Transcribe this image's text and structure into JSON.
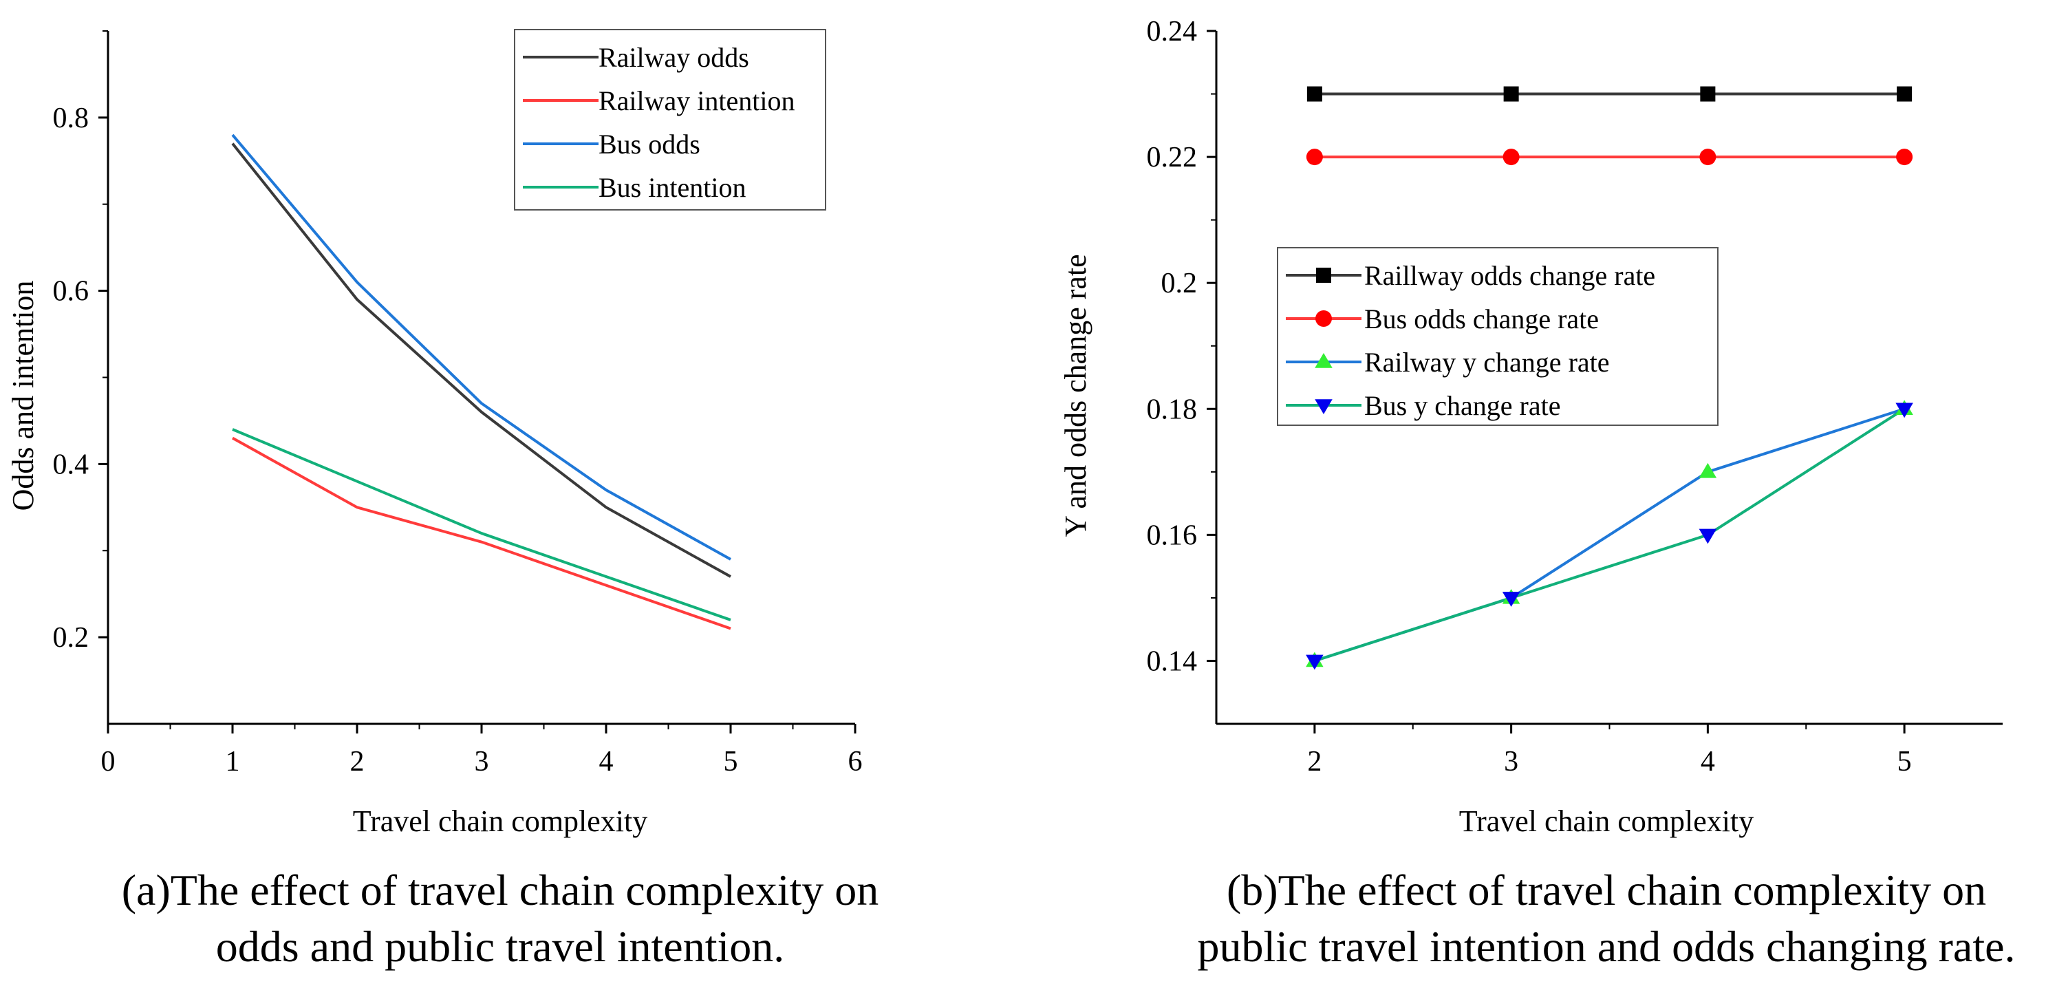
{
  "chart_data": [
    {
      "type": "line",
      "xlabel": "Travel chain complexity",
      "ylabel": "Odds and intention",
      "caption_lines": [
        "(a)The effect of travel chain complexity on",
        "odds and public travel intention."
      ],
      "xlim": [
        0,
        6
      ],
      "ylim": [
        0.1,
        0.9
      ],
      "xticks": [
        0,
        1,
        2,
        3,
        4,
        5,
        6
      ],
      "yticks": [
        0.2,
        0.4,
        0.6,
        0.8
      ],
      "xtick_labels": [
        "0",
        "1",
        "2",
        "3",
        "4",
        "5",
        "6"
      ],
      "ytick_labels": [
        "0.2",
        "0.4",
        "0.6",
        "0.8"
      ],
      "legend_position": "top-right",
      "x": [
        1,
        2,
        3,
        4,
        5
      ],
      "series": [
        {
          "name": "Railway odds",
          "color": "#3a3a3a",
          "marker": "none",
          "values": [
            0.77,
            0.59,
            0.46,
            0.35,
            0.27
          ]
        },
        {
          "name": "Railway intention",
          "color": "#ff3b3b",
          "marker": "none",
          "values": [
            0.43,
            0.35,
            0.31,
            0.26,
            0.21
          ]
        },
        {
          "name": "Bus odds",
          "color": "#1f78d8",
          "marker": "none",
          "values": [
            0.78,
            0.61,
            0.47,
            0.37,
            0.29
          ]
        },
        {
          "name": "Bus intention",
          "color": "#12b07a",
          "marker": "none",
          "values": [
            0.44,
            0.38,
            0.32,
            0.27,
            0.22
          ]
        }
      ]
    },
    {
      "type": "line",
      "xlabel": "Travel chain complexity",
      "ylabel": "Y and odds change rate",
      "caption_lines": [
        "(b)The effect of travel chain complexity on",
        "public travel intention and odds changing rate."
      ],
      "xlim": [
        1.5,
        5.5
      ],
      "ylim": [
        0.13,
        0.24
      ],
      "xticks": [
        2,
        3,
        4,
        5
      ],
      "yticks": [
        0.14,
        0.16,
        0.18,
        0.2,
        0.22,
        0.24
      ],
      "xtick_labels": [
        "2",
        "3",
        "4",
        "5"
      ],
      "ytick_labels": [
        "0.14",
        "0.16",
        "0.18",
        "0.2",
        "0.22",
        "0.24"
      ],
      "legend_position": "center-left",
      "x": [
        2,
        3,
        4,
        5
      ],
      "series": [
        {
          "name": "Raillway odds change rate",
          "color": "#000000",
          "line_color": "#3a3a3a",
          "marker": "square",
          "values": [
            0.23,
            0.23,
            0.23,
            0.23
          ]
        },
        {
          "name": "Bus odds change rate",
          "color": "#ff0000",
          "line_color": "#ff3b3b",
          "marker": "circle",
          "values": [
            0.22,
            0.22,
            0.22,
            0.22
          ]
        },
        {
          "name": "Railway y change rate",
          "color": "#33ee33",
          "line_color": "#1f78d8",
          "marker": "triangle-up",
          "values": [
            0.14,
            0.15,
            0.17,
            0.18
          ]
        },
        {
          "name": "Bus y change rate",
          "color": "#0000ee",
          "line_color": "#12b07a",
          "marker": "triangle-down",
          "values": [
            0.14,
            0.15,
            0.16,
            0.18
          ]
        }
      ]
    }
  ]
}
